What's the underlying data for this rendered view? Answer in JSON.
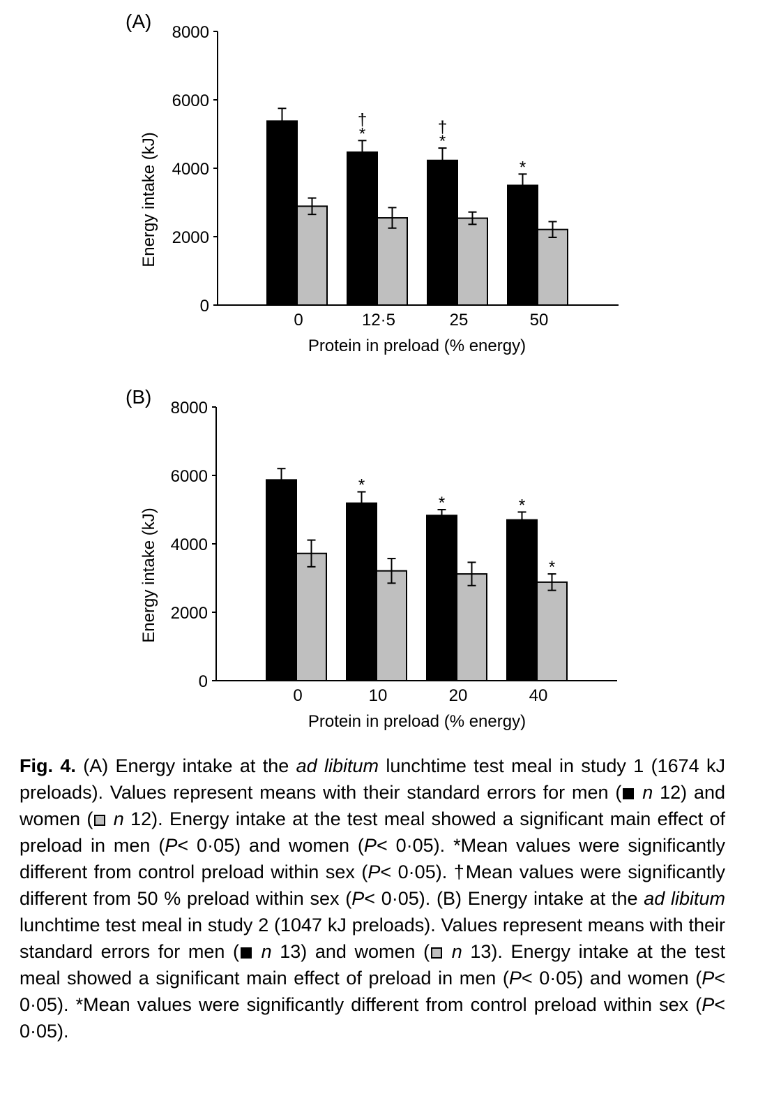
{
  "chart_data": [
    {
      "type": "bar",
      "panel_label": "(A)",
      "xlabel": "Protein in preload (% energy)",
      "ylabel": "Energy intake (kJ)",
      "ylim": [
        0,
        8000
      ],
      "yticks": [
        0,
        2000,
        4000,
        6000,
        8000
      ],
      "categories": [
        "0",
        "12·5",
        "25",
        "50"
      ],
      "series": [
        {
          "color": "#000000",
          "values": [
            5380,
            4470,
            4230,
            3500
          ],
          "errors": [
            370,
            340,
            360,
            330
          ],
          "markers": [
            "",
            "†\n*",
            "†\n*",
            "*"
          ]
        },
        {
          "color": "#bfbfbf",
          "values": [
            2890,
            2550,
            2540,
            2210
          ],
          "errors": [
            240,
            300,
            180,
            230
          ],
          "markers": [
            "",
            "",
            "",
            ""
          ]
        }
      ]
    },
    {
      "type": "bar",
      "panel_label": "(B)",
      "xlabel": "Protein in preload (% energy)",
      "ylabel": "Energy intake (kJ)",
      "ylim": [
        0,
        8000
      ],
      "yticks": [
        0,
        2000,
        4000,
        6000,
        8000
      ],
      "categories": [
        "0",
        "10",
        "20",
        "40"
      ],
      "series": [
        {
          "color": "#000000",
          "values": [
            5870,
            5190,
            4830,
            4700
          ],
          "errors": [
            330,
            330,
            170,
            230
          ],
          "markers": [
            "",
            "*",
            "*",
            "*"
          ]
        },
        {
          "color": "#bfbfbf",
          "values": [
            3720,
            3210,
            3120,
            2880
          ],
          "errors": [
            390,
            360,
            340,
            240
          ],
          "markers": [
            "",
            "",
            "",
            "*"
          ]
        }
      ]
    }
  ],
  "caption": {
    "fig_label": "Fig. 4.",
    "s1": " (A) Energy intake at the ",
    "ad_libitum": "ad libitum",
    "s2": " lunchtime test meal in study 1 (1674 kJ preloads). Values represent means with their standard errors for men (",
    "n": "n",
    "s3": " 12) and women (",
    "s4": " 12). Energy intake at the test meal showed a significant main effect of preload in men (",
    "P": "P",
    "s5": "< 0·05) and women (",
    "s6": "< 0·05). *Mean values were significantly different from control preload within sex (",
    "s7": "< 0·05). †Mean values were significantly different from 50 % preload within sex (",
    "s8": "< 0·05). (B) Energy intake at the ",
    "s9": " lunchtime test meal in study 2 (1047 kJ preloads). Values represent means with their standard errors for men (",
    "s10": " 13) and women (",
    "s11": " 13). Energy intake at the test meal showed a significant main effect of preload in men (",
    "s12": "< 0·05) and women (",
    "s13": "< 0·05). *Mean values were significantly different from control preload within sex (",
    "s14": "< 0·05)."
  }
}
